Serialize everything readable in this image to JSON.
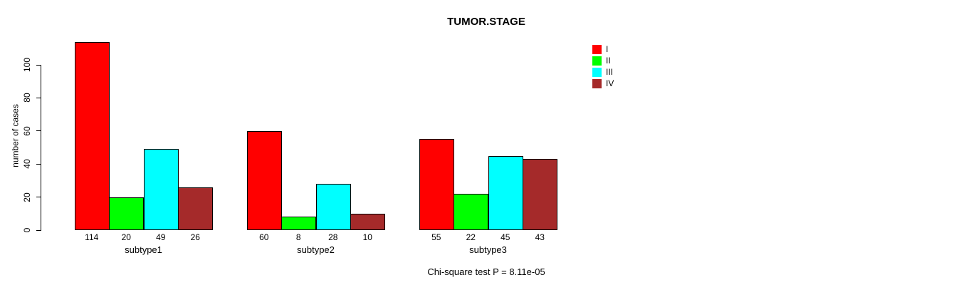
{
  "title": "TUMOR.STAGE",
  "ylabel": "number of cases",
  "footer": "Chi-square test P = 8.11e-05",
  "colors": {
    "background": "#ffffff",
    "text": "#000000",
    "axis": "#000000"
  },
  "chart_data": {
    "type": "bar",
    "grouped": true,
    "title": "TUMOR.STAGE",
    "xlabel": "",
    "ylabel": "number of cases",
    "categories": [
      "subtype1",
      "subtype2",
      "subtype3"
    ],
    "series": [
      {
        "name": "I",
        "color": "#ff0000",
        "values": [
          114,
          60,
          55
        ]
      },
      {
        "name": "II",
        "color": "#00ff00",
        "values": [
          20,
          8,
          22
        ]
      },
      {
        "name": "III",
        "color": "#00ffff",
        "values": [
          49,
          28,
          45
        ]
      },
      {
        "name": "IV",
        "color": "#a52a2a",
        "values": [
          26,
          10,
          43
        ]
      }
    ],
    "yticks": [
      0,
      20,
      40,
      60,
      80,
      100
    ],
    "ylim": [
      0,
      116
    ],
    "grid": false,
    "bar_value_labels": true,
    "legend_position": "top-right",
    "annotation": "Chi-square test P = 8.11e-05"
  }
}
